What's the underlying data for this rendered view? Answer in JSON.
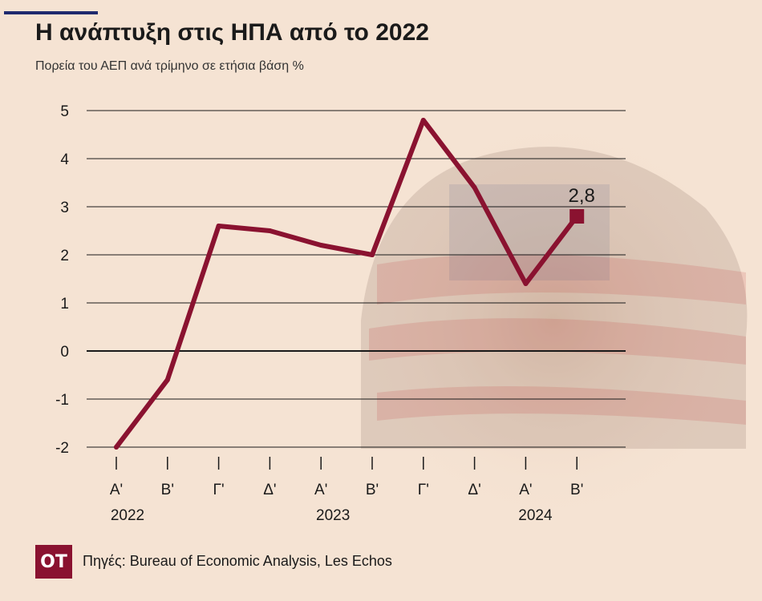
{
  "header": {
    "title": "Η ανάπτυξη στις ΗΠΑ από το 2022",
    "subtitle": "Πορεία του ΑΕΠ ανά τρίμηνο σε ετήσια βάση %"
  },
  "footer": {
    "logo_text": "OT",
    "source": "Πηγές: Bureau of Economic Analysis, Les Echos"
  },
  "colors": {
    "background": "#f5e3d3",
    "line": "#8a1230",
    "grid": "#1a1a1a",
    "accent": "#1f2a6e"
  },
  "chart_data": {
    "type": "line",
    "title": "Η ανάπτυξη στις ΗΠΑ από το 2022",
    "subtitle": "Πορεία του ΑΕΠ ανά τρίμηνο σε ετήσια βάση %",
    "categories": [
      "Α'",
      "Β'",
      "Γ'",
      "Δ'",
      "Α'",
      "Β'",
      "Γ'",
      "Δ'",
      "Α'",
      "Β'"
    ],
    "year_labels": [
      {
        "label": "2022",
        "category_index": 0
      },
      {
        "label": "2023",
        "category_index": 4
      },
      {
        "label": "2024",
        "category_index": 8
      }
    ],
    "series": [
      {
        "values": [
          -2.0,
          -0.6,
          2.6,
          2.5,
          2.2,
          2.0,
          4.8,
          3.4,
          1.4,
          2.8
        ]
      }
    ],
    "ylim": [
      -2,
      5
    ],
    "yticks": [
      5,
      4,
      3,
      2,
      1,
      0,
      -1,
      -2
    ],
    "grid": true,
    "annotations": [
      {
        "category_index": 9,
        "text": "2,8"
      }
    ]
  }
}
